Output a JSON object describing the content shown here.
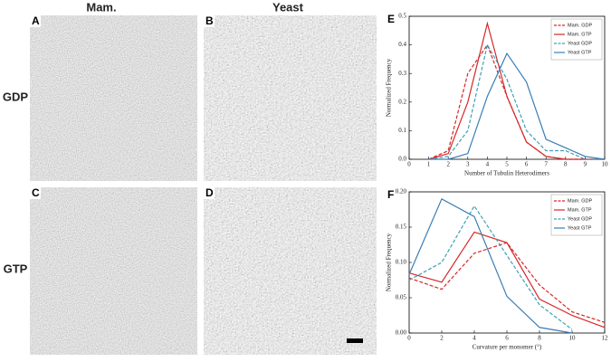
{
  "figure": {
    "column_headers": [
      "Mam.",
      "Yeast"
    ],
    "row_headers": [
      "GDP",
      "GTP"
    ],
    "panel_letters": [
      "A",
      "B",
      "C",
      "D"
    ]
  },
  "chart_data": [
    {
      "type": "line",
      "panel_letter": "E",
      "xlabel": "Number of Tubulin Heterodimers",
      "ylabel": "Normalized Frequency",
      "x": [
        1,
        2,
        3,
        4,
        5,
        6,
        7,
        8,
        9,
        10
      ],
      "xlim": [
        0,
        10
      ],
      "xticks": [
        0,
        1,
        2,
        3,
        4,
        5,
        6,
        7,
        8,
        9,
        10
      ],
      "ylim": [
        0,
        0.5
      ],
      "yticks": [
        {
          "value": 0,
          "label": "0.0"
        },
        0.1,
        0.2,
        0.3,
        0.4,
        0.5
      ],
      "legend": "upper right",
      "series": [
        {
          "name": "Mam. GDP",
          "color": "#d62728",
          "linestyle": "dashed",
          "values": [
            0,
            0.03,
            0.3,
            0.4,
            0.22,
            0.06,
            0.01,
            0,
            0,
            0
          ]
        },
        {
          "name": "Mam. GTP",
          "color": "#d62728",
          "linestyle": "solid",
          "values": [
            0,
            0.02,
            0.2,
            0.475,
            0.22,
            0.06,
            0.01,
            0,
            0,
            0
          ]
        },
        {
          "name": "Yeast GDP",
          "color": "#3fa0b4",
          "linestyle": "dashed",
          "values": [
            0,
            0.01,
            0.1,
            0.4,
            0.28,
            0.1,
            0.03,
            0.03,
            0,
            0
          ]
        },
        {
          "name": "Yeast GTP",
          "color": "#3a7db5",
          "linestyle": "solid",
          "values": [
            0,
            0,
            0.02,
            0.22,
            0.37,
            0.27,
            0.07,
            0.04,
            0.01,
            0
          ]
        }
      ]
    },
    {
      "type": "line",
      "panel_letter": "F",
      "xlabel": "Curvature per monomer (°)",
      "ylabel": "Normalized Frequency",
      "x": [
        0,
        2,
        4,
        6,
        8,
        10,
        12
      ],
      "xlim": [
        0,
        12
      ],
      "xticks": [
        0,
        2,
        4,
        6,
        8,
        10,
        12
      ],
      "ylim": [
        0,
        0.2
      ],
      "yticks": [
        {
          "value": 0,
          "label": "0.00"
        },
        0.05,
        {
          "value": 0.1,
          "label": "0.10"
        },
        0.15,
        {
          "value": 0.2,
          "label": "0.20"
        }
      ],
      "legend": "upper right",
      "series": [
        {
          "name": "Mam. GDP",
          "color": "#d62728",
          "linestyle": "dashed",
          "values": [
            0.078,
            0.062,
            0.113,
            0.128,
            0.068,
            0.03,
            0.015
          ]
        },
        {
          "name": "Mam. GTP",
          "color": "#d62728",
          "linestyle": "solid",
          "values": [
            0.085,
            0.072,
            0.143,
            0.128,
            0.048,
            0.025,
            0.008
          ]
        },
        {
          "name": "Yeast GDP",
          "color": "#3fa0b4",
          "linestyle": "dashed",
          "values": [
            0.075,
            0.1,
            0.18,
            0.11,
            0.04,
            0.005,
            null
          ]
        },
        {
          "name": "Yeast GTP",
          "color": "#3a7db5",
          "linestyle": "solid",
          "values": [
            0.083,
            0.19,
            0.165,
            0.052,
            0.008,
            0,
            null
          ]
        }
      ]
    }
  ]
}
